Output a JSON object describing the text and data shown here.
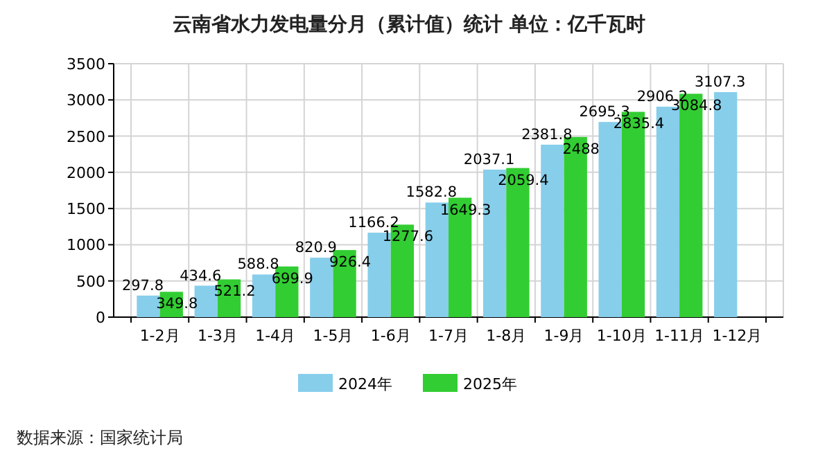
{
  "chart_data": {
    "type": "bar",
    "title": "云南省水力发电量分月（累计值）统计 单位：亿千瓦时",
    "categories": [
      "1-2月",
      "1-3月",
      "1-4月",
      "1-5月",
      "1-6月",
      "1-7月",
      "1-8月",
      "1-9月",
      "1-10月",
      "1-11月",
      "1-12月"
    ],
    "series": [
      {
        "name": "2024年",
        "color": "#87ceeb",
        "values": [
          297.8,
          434.6,
          588.8,
          820.9,
          1166.2,
          1582.8,
          2037.1,
          2381.8,
          2695.3,
          2906.2,
          3107.3
        ]
      },
      {
        "name": "2025年",
        "color": "#32cd32",
        "values": [
          349.8,
          521.2,
          699.9,
          926.4,
          1277.6,
          1649.3,
          2059.4,
          2488,
          2835.4,
          3084.8,
          null
        ]
      }
    ],
    "ylim": [
      0,
      3500
    ],
    "yticks": [
      0,
      500,
      1000,
      1500,
      2000,
      2500,
      3000,
      3500
    ],
    "grid": true,
    "legend": "bottom",
    "data_labels": true,
    "annotations": [
      "数据来源：国家统计局"
    ]
  }
}
